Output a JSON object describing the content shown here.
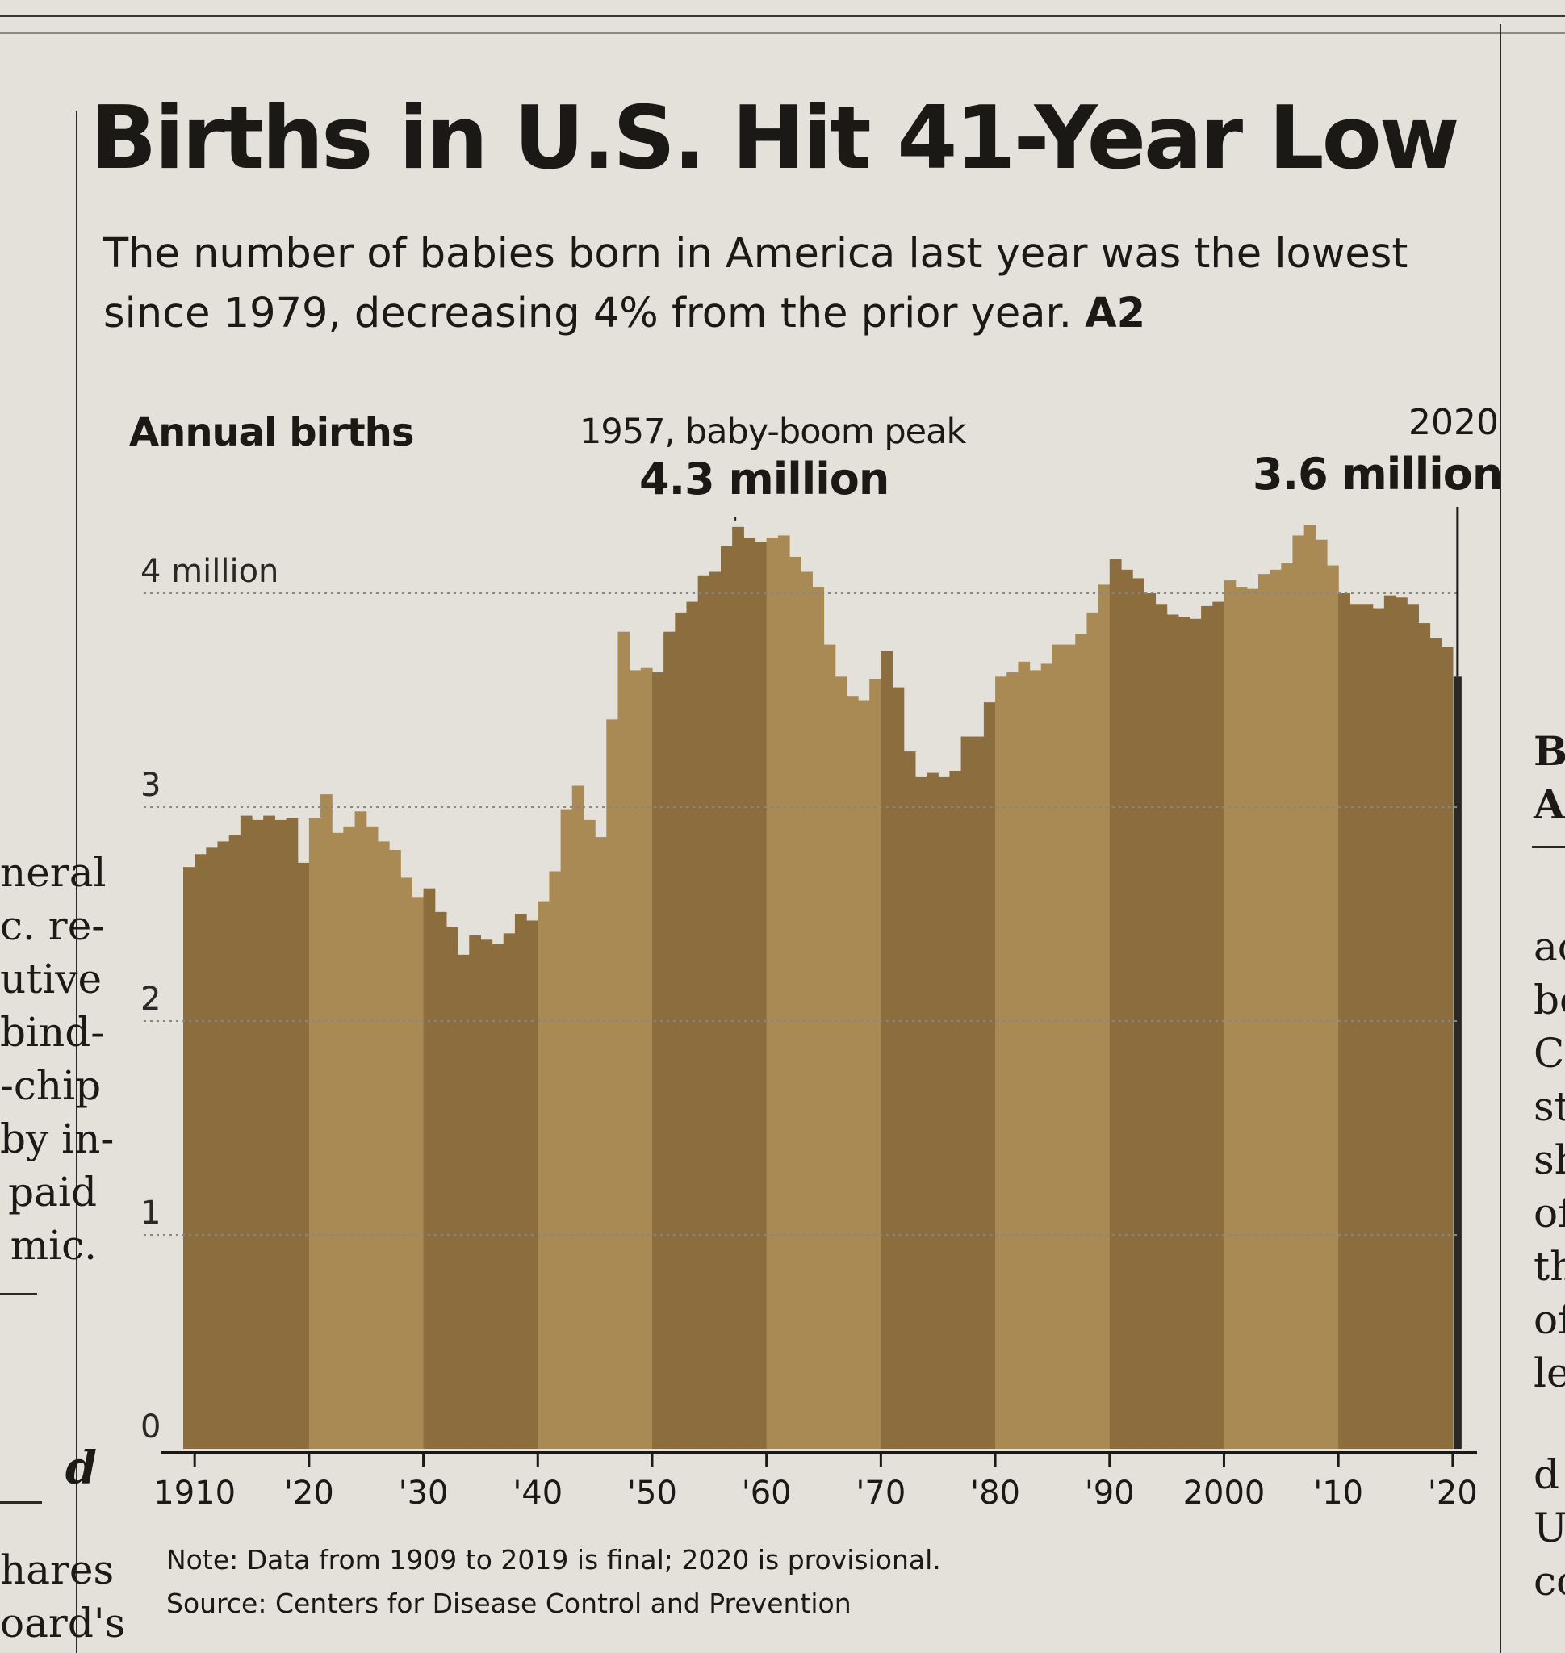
{
  "headline": "Births in U.S. Hit 41-Year Low",
  "deck": "The number of babies born in America last year was the lowest since 1979, decreasing 4% from the prior year.",
  "deck_ref": "A2",
  "chart_data": {
    "type": "area",
    "title": "Annual births",
    "xlabel": "",
    "ylabel": "",
    "x": [
      1909,
      1910,
      1911,
      1912,
      1913,
      1914,
      1915,
      1916,
      1917,
      1918,
      1919,
      1920,
      1921,
      1922,
      1923,
      1924,
      1925,
      1926,
      1927,
      1928,
      1929,
      1930,
      1931,
      1932,
      1933,
      1934,
      1935,
      1936,
      1937,
      1938,
      1939,
      1940,
      1941,
      1942,
      1943,
      1944,
      1945,
      1946,
      1947,
      1948,
      1949,
      1950,
      1951,
      1952,
      1953,
      1954,
      1955,
      1956,
      1957,
      1958,
      1959,
      1960,
      1961,
      1962,
      1963,
      1964,
      1965,
      1966,
      1967,
      1968,
      1969,
      1970,
      1971,
      1972,
      1973,
      1974,
      1975,
      1976,
      1977,
      1978,
      1979,
      1980,
      1981,
      1982,
      1983,
      1984,
      1985,
      1986,
      1987,
      1988,
      1989,
      1990,
      1991,
      1992,
      1993,
      1994,
      1995,
      1996,
      1997,
      1998,
      1999,
      2000,
      2001,
      2002,
      2003,
      2004,
      2005,
      2006,
      2007,
      2008,
      2009,
      2010,
      2011,
      2012,
      2013,
      2014,
      2015,
      2016,
      2017,
      2018,
      2019,
      2020
    ],
    "values": [
      2.72,
      2.78,
      2.81,
      2.84,
      2.87,
      2.96,
      2.94,
      2.96,
      2.94,
      2.95,
      2.74,
      2.95,
      3.06,
      2.88,
      2.91,
      2.98,
      2.91,
      2.84,
      2.8,
      2.67,
      2.58,
      2.62,
      2.51,
      2.44,
      2.31,
      2.4,
      2.38,
      2.36,
      2.41,
      2.5,
      2.47,
      2.56,
      2.7,
      2.99,
      3.1,
      2.94,
      2.86,
      3.41,
      3.82,
      3.64,
      3.65,
      3.63,
      3.82,
      3.91,
      3.96,
      4.08,
      4.1,
      4.22,
      4.31,
      4.26,
      4.24,
      4.26,
      4.27,
      4.17,
      4.1,
      4.03,
      3.76,
      3.61,
      3.52,
      3.5,
      3.6,
      3.73,
      3.56,
      3.26,
      3.14,
      3.16,
      3.14,
      3.17,
      3.33,
      3.33,
      3.49,
      3.61,
      3.63,
      3.68,
      3.64,
      3.67,
      3.76,
      3.76,
      3.81,
      3.91,
      4.04,
      4.16,
      4.11,
      4.07,
      4.0,
      3.95,
      3.9,
      3.89,
      3.88,
      3.94,
      3.96,
      4.06,
      4.03,
      4.02,
      4.09,
      4.11,
      4.14,
      4.27,
      4.32,
      4.25,
      4.13,
      4.0,
      3.95,
      3.95,
      3.93,
      3.99,
      3.98,
      3.95,
      3.86,
      3.79,
      3.75,
      3.61
    ],
    "ylim": [
      0,
      4.3
    ],
    "y_ticks": [
      "0",
      "1",
      "2",
      "3",
      "4 million"
    ],
    "y_tick_values": [
      0,
      1,
      2,
      3,
      4
    ],
    "x_ticks": [
      "1910",
      "'20",
      "'30",
      "'40",
      "'50",
      "'60",
      "'70",
      "'80",
      "'90",
      "2000",
      "'10",
      "'20"
    ],
    "x_tick_values": [
      1910,
      1920,
      1930,
      1940,
      1950,
      1960,
      1970,
      1980,
      1990,
      2000,
      2010,
      2020
    ],
    "grid": true,
    "annotations": [
      {
        "label": "1957, baby-boom peak",
        "value_label": "4.3 million",
        "x": 1957,
        "y": 4.31
      },
      {
        "label": "2020",
        "value_label": "3.6 million",
        "x": 2020,
        "y": 3.61
      }
    ],
    "colors": {
      "band_dark": "#8c6d3e",
      "band_light": "#a98a55",
      "highlight": "#2a2824",
      "grid": "#8a867e"
    }
  },
  "notes": {
    "note": "Note: Data from 1909 to 2019 is final; 2020 is provisional.",
    "source": "Source: Centers for Disease Control and Prevention"
  },
  "adjacent_text": {
    "left": [
      "neral",
      "c. re-",
      "utive",
      "bind-",
      "-chip",
      "by in-",
      "paid",
      "mic.",
      "d",
      "hares",
      "oard's"
    ],
    "right": [
      "B",
      "A",
      "ac",
      "be",
      "C",
      "st",
      "sh",
      "of",
      "th",
      "of",
      "le",
      "d",
      "U",
      "co"
    ]
  }
}
